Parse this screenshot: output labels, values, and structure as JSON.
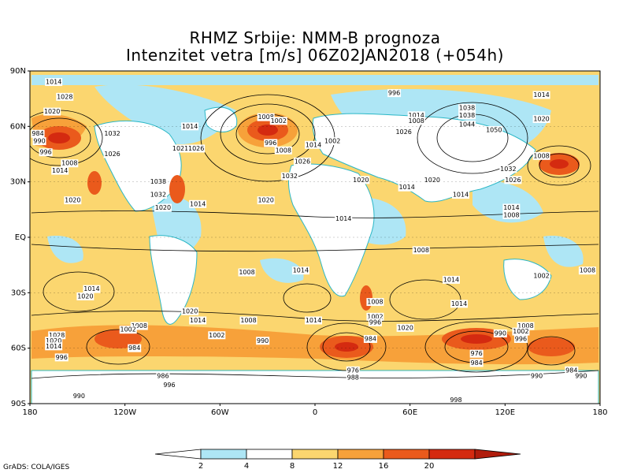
{
  "title_line1": "RHMZ Srbije: NMM-B prognoza",
  "title_line2": "Intenzitet vetra [m/s] 06Z02JAN2018 (+054h)",
  "credit": "GrADS: COLA/IGES",
  "lat_labels": [
    "90N",
    "60N",
    "30N",
    "EQ",
    "30S",
    "60S",
    "90S"
  ],
  "lon_labels": [
    "180",
    "120W",
    "60W",
    "0",
    "60E",
    "120E",
    "180"
  ],
  "colorbar": {
    "ticks": [
      "2",
      "4",
      "8",
      "12",
      "16",
      "20"
    ],
    "colors": [
      "#ffffff",
      "#aee6f5",
      "#ffffff",
      "#fbd66f",
      "#f7a13a",
      "#ea5a1c",
      "#d42a10",
      "#b01c0c"
    ]
  },
  "isobars": [
    {
      "label": "1014",
      "lon": -165,
      "lat": 84
    },
    {
      "label": "1028",
      "lon": -158,
      "lat": 76
    },
    {
      "label": "1020",
      "lon": -166,
      "lat": 68
    },
    {
      "label": "984",
      "lon": -175,
      "lat": 56
    },
    {
      "label": "990",
      "lon": -174,
      "lat": 52
    },
    {
      "label": "996",
      "lon": -170,
      "lat": 46
    },
    {
      "label": "1008",
      "lon": -155,
      "lat": 40
    },
    {
      "label": "1014",
      "lon": -161,
      "lat": 36
    },
    {
      "label": "1032",
      "lon": -128,
      "lat": 56
    },
    {
      "label": "1026",
      "lon": -128,
      "lat": 45
    },
    {
      "label": "1038",
      "lon": -99,
      "lat": 30
    },
    {
      "label": "1032",
      "lon": -99,
      "lat": 23
    },
    {
      "label": "1020",
      "lon": -96,
      "lat": 16
    },
    {
      "label": "1020",
      "lon": -153,
      "lat": 20
    },
    {
      "label": "1014",
      "lon": -74,
      "lat": 18
    },
    {
      "label": "1021",
      "lon": -85,
      "lat": 48
    },
    {
      "label": "1026",
      "lon": -75,
      "lat": 48
    },
    {
      "label": "1014",
      "lon": -79,
      "lat": 60
    },
    {
      "label": "1008",
      "lon": -31,
      "lat": 65
    },
    {
      "label": "1002",
      "lon": -23,
      "lat": 63
    },
    {
      "label": "996",
      "lon": -28,
      "lat": 51
    },
    {
      "label": "1008",
      "lon": -20,
      "lat": 47
    },
    {
      "label": "1002",
      "lon": 11,
      "lat": 52
    },
    {
      "label": "1014",
      "lon": -1,
      "lat": 50
    },
    {
      "label": "1026",
      "lon": -8,
      "lat": 41
    },
    {
      "label": "1032",
      "lon": -16,
      "lat": 33
    },
    {
      "label": "1020",
      "lon": -31,
      "lat": 20
    },
    {
      "label": "996",
      "lon": 50,
      "lat": 78
    },
    {
      "label": "1014",
      "lon": 64,
      "lat": 66
    },
    {
      "label": "1008",
      "lon": 64,
      "lat": 63
    },
    {
      "label": "1026",
      "lon": 56,
      "lat": 57
    },
    {
      "label": "1020",
      "lon": 29,
      "lat": 31
    },
    {
      "label": "1014",
      "lon": 58,
      "lat": 27
    },
    {
      "label": "1020",
      "lon": 74,
      "lat": 31
    },
    {
      "label": "1014",
      "lon": 92,
      "lat": 23
    },
    {
      "label": "1014",
      "lon": 18,
      "lat": 10
    },
    {
      "label": "1038",
      "lon": 96,
      "lat": 70
    },
    {
      "label": "1038",
      "lon": 96,
      "lat": 66
    },
    {
      "label": "1044",
      "lon": 96,
      "lat": 61
    },
    {
      "label": "1050",
      "lon": 113,
      "lat": 58
    },
    {
      "label": "1014",
      "lon": 143,
      "lat": 77
    },
    {
      "label": "1020",
      "lon": 143,
      "lat": 64
    },
    {
      "label": "1008",
      "lon": 143,
      "lat": 44
    },
    {
      "label": "1032",
      "lon": 122,
      "lat": 37
    },
    {
      "label": "1026",
      "lon": 125,
      "lat": 31
    },
    {
      "label": "1014",
      "lon": 124,
      "lat": 16
    },
    {
      "label": "1008",
      "lon": 124,
      "lat": 12
    },
    {
      "label": "1008",
      "lon": -43,
      "lat": -19
    },
    {
      "label": "1014",
      "lon": -9,
      "lat": -18
    },
    {
      "label": "1014",
      "lon": -141,
      "lat": -28
    },
    {
      "label": "1020",
      "lon": -145,
      "lat": -32
    },
    {
      "label": "1020",
      "lon": -79,
      "lat": -40
    },
    {
      "label": "1014",
      "lon": -74,
      "lat": -45
    },
    {
      "label": "1008",
      "lon": -42,
      "lat": -45
    },
    {
      "label": "1014",
      "lon": -1,
      "lat": -45
    },
    {
      "label": "1002",
      "lon": -62,
      "lat": -53
    },
    {
      "label": "990",
      "lon": -33,
      "lat": -56
    },
    {
      "label": "1008",
      "lon": -111,
      "lat": -48
    },
    {
      "label": "1002",
      "lon": -118,
      "lat": -50
    },
    {
      "label": "1028",
      "lon": -163,
      "lat": -53
    },
    {
      "label": "1020",
      "lon": -165,
      "lat": -56
    },
    {
      "label": "1014",
      "lon": -165,
      "lat": -59
    },
    {
      "label": "996",
      "lon": -160,
      "lat": -65
    },
    {
      "label": "984",
      "lon": -114,
      "lat": -60
    },
    {
      "label": "986",
      "lon": -96,
      "lat": -75
    },
    {
      "label": "996",
      "lon": -92,
      "lat": -80
    },
    {
      "label": "990",
      "lon": -149,
      "lat": -86
    },
    {
      "label": "1008",
      "lon": 38,
      "lat": -35
    },
    {
      "label": "1002",
      "lon": 38,
      "lat": -43
    },
    {
      "label": "996",
      "lon": 38,
      "lat": -46
    },
    {
      "label": "1020",
      "lon": 57,
      "lat": -49
    },
    {
      "label": "1014",
      "lon": 91,
      "lat": -36
    },
    {
      "label": "1008",
      "lon": 67,
      "lat": -7
    },
    {
      "label": "1014",
      "lon": 86,
      "lat": -23
    },
    {
      "label": "1002",
      "lon": 143,
      "lat": -21
    },
    {
      "label": "1008",
      "lon": 172,
      "lat": -18
    },
    {
      "label": "984",
      "lon": 35,
      "lat": -55
    },
    {
      "label": "976",
      "lon": 24,
      "lat": -72
    },
    {
      "label": "988",
      "lon": 24,
      "lat": -76
    },
    {
      "label": "976",
      "lon": 102,
      "lat": -63
    },
    {
      "label": "984",
      "lon": 102,
      "lat": -68
    },
    {
      "label": "990",
      "lon": 117,
      "lat": -52
    },
    {
      "label": "1008",
      "lon": 133,
      "lat": -48
    },
    {
      "label": "1002",
      "lon": 130,
      "lat": -51
    },
    {
      "label": "996",
      "lon": 130,
      "lat": -55
    },
    {
      "label": "984",
      "lon": 162,
      "lat": -72
    },
    {
      "label": "990",
      "lon": 168,
      "lat": -75
    },
    {
      "label": "990",
      "lon": 140,
      "lat": -75
    },
    {
      "label": "998",
      "lon": 89,
      "lat": -88
    }
  ]
}
